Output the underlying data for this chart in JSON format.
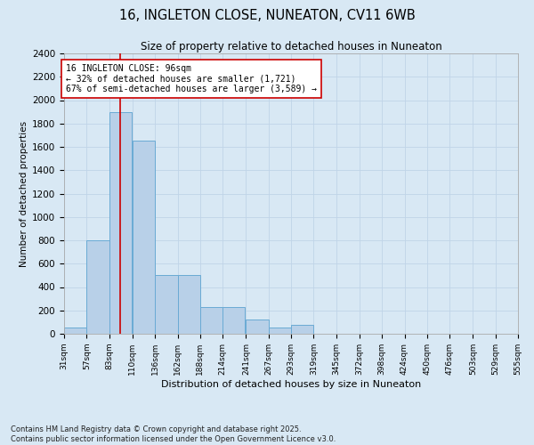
{
  "title": "16, INGLETON CLOSE, NUNEATON, CV11 6WB",
  "subtitle": "Size of property relative to detached houses in Nuneaton",
  "xlabel": "Distribution of detached houses by size in Nuneaton",
  "ylabel": "Number of detached properties",
  "bin_edges": [
    31,
    57,
    83,
    110,
    136,
    162,
    188,
    214,
    241,
    267,
    293,
    319,
    345,
    372,
    398,
    424,
    450,
    476,
    503,
    529,
    555
  ],
  "bar_heights": [
    50,
    800,
    1900,
    1650,
    500,
    500,
    230,
    230,
    120,
    50,
    80,
    0,
    0,
    0,
    0,
    0,
    0,
    0,
    0,
    0
  ],
  "bar_color": "#b8d0e8",
  "bar_edge_color": "#6aaad4",
  "bar_linewidth": 0.7,
  "vline_x": 96,
  "vline_color": "#cc0000",
  "vline_linewidth": 1.2,
  "annotation_text": "16 INGLETON CLOSE: 96sqm\n← 32% of detached houses are smaller (1,721)\n67% of semi-detached houses are larger (3,589) →",
  "annotation_box_color": "#ffffff",
  "annotation_box_edge": "#cc0000",
  "annotation_fontsize": 7.0,
  "ylim": [
    0,
    2400
  ],
  "yticks": [
    0,
    200,
    400,
    600,
    800,
    1000,
    1200,
    1400,
    1600,
    1800,
    2000,
    2200,
    2400
  ],
  "grid_color": "#c0d4e8",
  "background_color": "#d8e8f4",
  "plot_bg_color": "#d8e8f4",
  "footer_text": "Contains HM Land Registry data © Crown copyright and database right 2025.\nContains public sector information licensed under the Open Government Licence v3.0.",
  "footer_fontsize": 6.0,
  "title_fontsize": 10.5,
  "subtitle_fontsize": 8.5,
  "ylabel_fontsize": 7.5,
  "xlabel_fontsize": 8.0,
  "ytick_fontsize": 7.5,
  "xtick_fontsize": 6.5
}
